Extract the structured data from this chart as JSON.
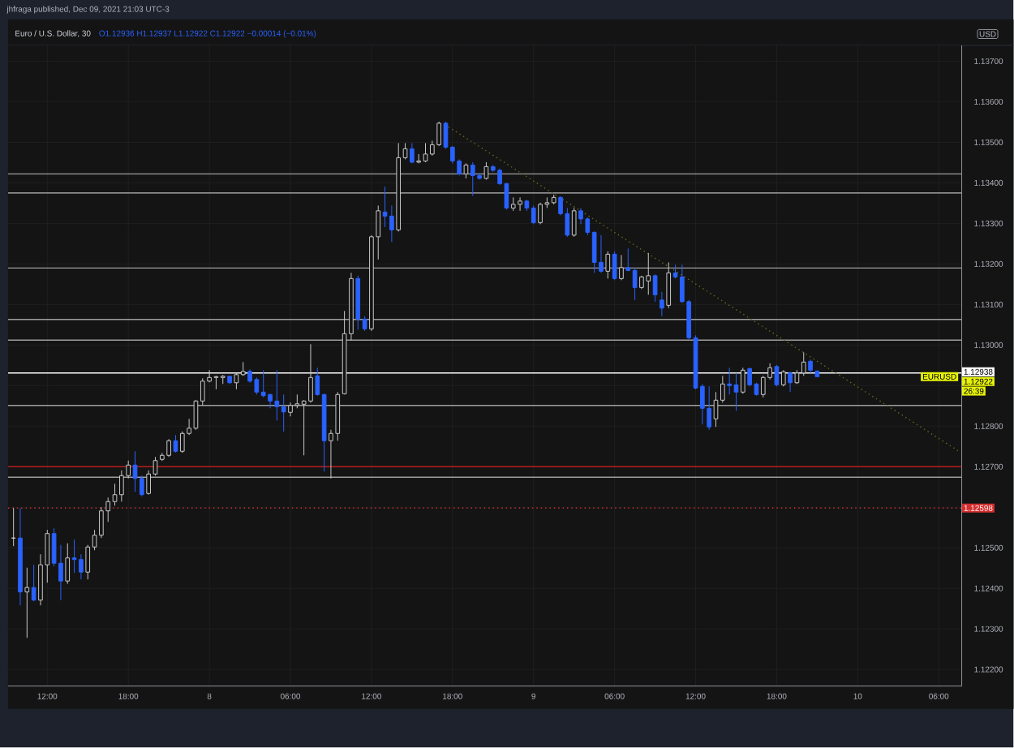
{
  "chart_data": {
    "type": "candlestick",
    "title": "Euro / U.S. Dollar, 30",
    "subtitle": "O1.12936 H1.12937 L1.12922 C1.12922 −0.00014 (−0.01%)",
    "ylabel": "USD",
    "x": [
      "2021-12-07T09:30",
      "2021-12-07T10:00",
      "2021-12-07T10:30",
      "2021-12-07T11:00",
      "2021-12-07T11:30",
      "2021-12-07T12:00",
      "2021-12-07T12:30",
      "2021-12-07T13:00",
      "2021-12-07T13:30",
      "2021-12-07T14:00",
      "2021-12-07T14:30",
      "2021-12-07T15:00",
      "2021-12-07T15:30",
      "2021-12-07T16:00",
      "2021-12-07T16:30",
      "2021-12-07T17:00",
      "2021-12-07T17:30",
      "2021-12-07T18:00",
      "2021-12-07T18:30",
      "2021-12-07T19:00",
      "2021-12-07T19:30",
      "2021-12-07T20:00",
      "2021-12-07T20:30",
      "2021-12-07T21:00",
      "2021-12-07T21:30",
      "2021-12-07T22:00",
      "2021-12-07T22:30",
      "2021-12-07T23:00",
      "2021-12-07T23:30",
      "2021-12-08T00:00",
      "2021-12-08T00:30",
      "2021-12-08T01:00",
      "2021-12-08T01:30",
      "2021-12-08T02:00",
      "2021-12-08T02:30",
      "2021-12-08T03:00",
      "2021-12-08T03:30",
      "2021-12-08T04:00",
      "2021-12-08T04:30",
      "2021-12-08T05:00",
      "2021-12-08T05:30",
      "2021-12-08T06:00",
      "2021-12-08T06:30",
      "2021-12-08T07:00",
      "2021-12-08T07:30",
      "2021-12-08T08:00",
      "2021-12-08T08:30",
      "2021-12-08T09:00",
      "2021-12-08T09:30",
      "2021-12-08T10:00",
      "2021-12-08T10:30",
      "2021-12-08T11:00",
      "2021-12-08T11:30",
      "2021-12-08T12:00",
      "2021-12-08T12:30",
      "2021-12-08T13:00",
      "2021-12-08T13:30",
      "2021-12-08T14:00",
      "2021-12-08T14:30",
      "2021-12-08T15:00",
      "2021-12-08T15:30",
      "2021-12-08T16:00",
      "2021-12-08T16:30",
      "2021-12-08T17:00",
      "2021-12-08T17:30",
      "2021-12-08T18:00",
      "2021-12-08T18:30",
      "2021-12-08T19:00",
      "2021-12-08T19:30",
      "2021-12-08T20:00",
      "2021-12-08T20:30",
      "2021-12-08T21:00",
      "2021-12-08T21:30",
      "2021-12-08T22:00",
      "2021-12-08T22:30",
      "2021-12-08T23:00",
      "2021-12-08T23:30",
      "2021-12-09T00:00",
      "2021-12-09T00:30",
      "2021-12-09T01:00",
      "2021-12-09T01:30",
      "2021-12-09T02:00",
      "2021-12-09T02:30",
      "2021-12-09T03:00",
      "2021-12-09T03:30",
      "2021-12-09T04:00",
      "2021-12-09T04:30",
      "2021-12-09T05:00",
      "2021-12-09T05:30",
      "2021-12-09T06:00",
      "2021-12-09T06:30",
      "2021-12-09T07:00",
      "2021-12-09T07:30",
      "2021-12-09T08:00",
      "2021-12-09T08:30",
      "2021-12-09T09:00",
      "2021-12-09T09:30",
      "2021-12-09T10:00",
      "2021-12-09T10:30",
      "2021-12-09T11:00",
      "2021-12-09T11:30",
      "2021-12-09T12:00",
      "2021-12-09T12:30",
      "2021-12-09T13:00",
      "2021-12-09T13:30",
      "2021-12-09T14:00",
      "2021-12-09T14:30",
      "2021-12-09T15:00",
      "2021-12-09T15:30",
      "2021-12-09T16:00",
      "2021-12-09T16:30",
      "2021-12-09T17:00",
      "2021-12-09T17:30",
      "2021-12-09T18:00",
      "2021-12-09T18:30",
      "2021-12-09T19:00",
      "2021-12-09T19:30",
      "2021-12-09T20:00",
      "2021-12-09T20:30",
      "2021-12-09T21:00"
    ],
    "ohlc": [
      [
        1.12524,
        1.12598,
        1.12504,
        1.12524
      ],
      [
        1.12524,
        1.12598,
        1.12358,
        1.12391
      ],
      [
        1.12391,
        1.12451,
        1.12278,
        1.12402
      ],
      [
        1.12402,
        1.12458,
        1.12368,
        1.12371
      ],
      [
        1.12371,
        1.12484,
        1.12358,
        1.12458
      ],
      [
        1.12458,
        1.12544,
        1.12414,
        1.12535
      ],
      [
        1.12535,
        1.12548,
        1.12454,
        1.12462
      ],
      [
        1.12462,
        1.12507,
        1.12371,
        1.12418
      ],
      [
        1.12418,
        1.12511,
        1.12411,
        1.12475
      ],
      [
        1.12475,
        1.1252,
        1.12438,
        1.12471
      ],
      [
        1.12471,
        1.12484,
        1.12422,
        1.1244
      ],
      [
        1.1244,
        1.12507,
        1.12422,
        1.12502
      ],
      [
        1.12502,
        1.12544,
        1.12494,
        1.12531
      ],
      [
        1.12531,
        1.126,
        1.12524,
        1.12591
      ],
      [
        1.12591,
        1.12624,
        1.12564,
        1.12614
      ],
      [
        1.12614,
        1.12658,
        1.12604,
        1.12631
      ],
      [
        1.12631,
        1.12691,
        1.12614,
        1.12678
      ],
      [
        1.12678,
        1.12715,
        1.12671,
        1.12704
      ],
      [
        1.12704,
        1.12738,
        1.12638,
        1.12671
      ],
      [
        1.12671,
        1.12678,
        1.12627,
        1.12631
      ],
      [
        1.12634,
        1.12691,
        1.12631,
        1.12682
      ],
      [
        1.12682,
        1.12724,
        1.12678,
        1.12715
      ],
      [
        1.12718,
        1.12734,
        1.12714,
        1.12728
      ],
      [
        1.12728,
        1.12768,
        1.12724,
        1.12764
      ],
      [
        1.12764,
        1.12778,
        1.12735,
        1.12738
      ],
      [
        1.12738,
        1.12787,
        1.12734,
        1.12782
      ],
      [
        1.12782,
        1.12818,
        1.12778,
        1.12795
      ],
      [
        1.12795,
        1.12864,
        1.12791,
        1.12862
      ],
      [
        1.12862,
        1.12918,
        1.12851,
        1.12911
      ],
      [
        1.12911,
        1.12938,
        1.12908,
        1.1292
      ],
      [
        1.1292,
        1.12924,
        1.12891,
        1.12922
      ],
      [
        1.1292,
        1.12926,
        1.12904,
        1.12923
      ],
      [
        1.12923,
        1.12924,
        1.12904,
        1.12907
      ],
      [
        1.12907,
        1.12931,
        1.12891,
        1.12927
      ],
      [
        1.12927,
        1.12958,
        1.12924,
        1.12935
      ],
      [
        1.12935,
        1.1294,
        1.12907,
        1.12911
      ],
      [
        1.12915,
        1.1292,
        1.12878,
        1.12884
      ],
      [
        1.12884,
        1.12938,
        1.12871,
        1.12875
      ],
      [
        1.12878,
        1.1288,
        1.12844,
        1.12862
      ],
      [
        1.12862,
        1.12938,
        1.12814,
        1.12848
      ],
      [
        1.12848,
        1.12878,
        1.12787,
        1.12835
      ],
      [
        1.12834,
        1.12858,
        1.12824,
        1.12851
      ],
      [
        1.12851,
        1.12878,
        1.12844,
        1.12855
      ],
      [
        1.12854,
        1.12864,
        1.12728,
        1.12862
      ],
      [
        1.12862,
        1.13002,
        1.12858,
        1.1292
      ],
      [
        1.12924,
        1.12944,
        1.12875,
        1.12878
      ],
      [
        1.12878,
        1.1288,
        1.12688,
        1.12764
      ],
      [
        1.12764,
        1.12791,
        1.12671,
        1.12782
      ],
      [
        1.12782,
        1.12884,
        1.12764,
        1.12878
      ],
      [
        1.1288,
        1.13084,
        1.12878,
        1.13028
      ],
      [
        1.13028,
        1.13178,
        1.13011,
        1.13164
      ],
      [
        1.13164,
        1.13171,
        1.13038,
        1.13064
      ],
      [
        1.13064,
        1.13071,
        1.13035,
        1.1304
      ],
      [
        1.1304,
        1.13271,
        1.13035,
        1.13267
      ],
      [
        1.13267,
        1.13344,
        1.13211,
        1.13331
      ],
      [
        1.13328,
        1.13391,
        1.13291,
        1.13318
      ],
      [
        1.13318,
        1.13344,
        1.13254,
        1.13284
      ],
      [
        1.13284,
        1.13498,
        1.1328,
        1.13462
      ],
      [
        1.13462,
        1.13498,
        1.13458,
        1.13484
      ],
      [
        1.13484,
        1.13498,
        1.13448,
        1.13451
      ],
      [
        1.13451,
        1.13471,
        1.13448,
        1.13454
      ],
      [
        1.13454,
        1.13498,
        1.13451,
        1.13471
      ],
      [
        1.13471,
        1.13504,
        1.13467,
        1.13494
      ],
      [
        1.13494,
        1.13551,
        1.13491,
        1.13547
      ],
      [
        1.13547,
        1.13551,
        1.13484,
        1.13488
      ],
      [
        1.13488,
        1.13491,
        1.13448,
        1.13454
      ],
      [
        1.13454,
        1.13458,
        1.13418,
        1.13422
      ],
      [
        1.13422,
        1.13448,
        1.13411,
        1.13444
      ],
      [
        1.13444,
        1.13451,
        1.13368,
        1.13418
      ],
      [
        1.13418,
        1.13424,
        1.13408,
        1.13411
      ],
      [
        1.13411,
        1.13451,
        1.13408,
        1.1344
      ],
      [
        1.1344,
        1.13444,
        1.13427,
        1.13431
      ],
      [
        1.13431,
        1.13435,
        1.13395,
        1.13398
      ],
      [
        1.13398,
        1.134,
        1.13334,
        1.13338
      ],
      [
        1.13338,
        1.13364,
        1.13331,
        1.13347
      ],
      [
        1.13347,
        1.13364,
        1.13331,
        1.13355
      ],
      [
        1.13355,
        1.13358,
        1.13331,
        1.13338
      ],
      [
        1.13338,
        1.13344,
        1.13298,
        1.13302
      ],
      [
        1.13302,
        1.13351,
        1.13298,
        1.13347
      ],
      [
        1.13347,
        1.13364,
        1.13338,
        1.13351
      ],
      [
        1.13351,
        1.13371,
        1.13347,
        1.13364
      ],
      [
        1.13364,
        1.13367,
        1.1332,
        1.13324
      ],
      [
        1.13324,
        1.13338,
        1.13267,
        1.13271
      ],
      [
        1.13271,
        1.13338,
        1.13267,
        1.13331
      ],
      [
        1.13331,
        1.13338,
        1.13298,
        1.13311
      ],
      [
        1.13311,
        1.13315,
        1.13271,
        1.13278
      ],
      [
        1.13278,
        1.1328,
        1.13178,
        1.13204
      ],
      [
        1.13204,
        1.13271,
        1.13178,
        1.13182
      ],
      [
        1.13182,
        1.13231,
        1.13164,
        1.13224
      ],
      [
        1.13224,
        1.13231,
        1.1316,
        1.13164
      ],
      [
        1.13164,
        1.13222,
        1.1316,
        1.13191
      ],
      [
        1.13191,
        1.13238,
        1.13182,
        1.13184
      ],
      [
        1.13184,
        1.13191,
        1.13111,
        1.13142
      ],
      [
        1.13142,
        1.13171,
        1.13138,
        1.13168
      ],
      [
        1.13158,
        1.13227,
        1.13124,
        1.13171
      ],
      [
        1.13171,
        1.13174,
        1.13107,
        1.13124
      ],
      [
        1.13111,
        1.13131,
        1.13071,
        1.13091
      ],
      [
        1.13098,
        1.13204,
        1.13091,
        1.13178
      ],
      [
        1.13178,
        1.13198,
        1.13164,
        1.13168
      ],
      [
        1.13168,
        1.13198,
        1.13104,
        1.13107
      ],
      [
        1.13107,
        1.13111,
        1.13014,
        1.13018
      ],
      [
        1.13018,
        1.13024,
        1.12891,
        1.12894
      ],
      [
        1.12898,
        1.12904,
        1.12804,
        1.12844
      ],
      [
        1.12844,
        1.12898,
        1.12791,
        1.12798
      ],
      [
        1.12818,
        1.12884,
        1.12798,
        1.12864
      ],
      [
        1.12864,
        1.12924,
        1.12858,
        1.12904
      ],
      [
        1.12904,
        1.12944,
        1.12878,
        1.129
      ],
      [
        1.12902,
        1.12931,
        1.12838,
        1.12884
      ],
      [
        1.12884,
        1.12944,
        1.1288,
        1.12938
      ],
      [
        1.12942,
        1.12944,
        1.12898,
        1.12902
      ],
      [
        1.12904,
        1.12907,
        1.12875,
        1.12878
      ],
      [
        1.12878,
        1.12924,
        1.12871,
        1.1292
      ],
      [
        1.1292,
        1.12955,
        1.12915,
        1.12944
      ],
      [
        1.12947,
        1.12951,
        1.12898,
        1.12902
      ],
      [
        1.12902,
        1.12938,
        1.12898,
        1.12934
      ],
      [
        1.12931,
        1.12934,
        1.12884,
        1.12907
      ],
      [
        1.12907,
        1.12938,
        1.12904,
        1.12931
      ],
      [
        1.12931,
        1.12982,
        1.12924,
        1.12958
      ],
      [
        1.1296,
        1.12964,
        1.12931,
        1.12938
      ],
      [
        1.12936,
        1.12937,
        1.12922,
        1.12922
      ]
    ],
    "series": [
      {
        "type": "line",
        "x": [
          "2021-12-08T17:42",
          "2021-12-10T07:30"
        ],
        "values": [
          1.13538,
          1.12738
        ],
        "color": "#6b6b1f",
        "line_style": "dotted"
      }
    ],
    "ref_lines": [
      {
        "axis": "y",
        "value": 1.13422,
        "color": "#9e9e9e",
        "line_style": "solid"
      },
      {
        "axis": "y",
        "value": 1.13375,
        "color": "#bdbdbd",
        "line_style": "solid"
      },
      {
        "axis": "y",
        "value": 1.1319,
        "color": "#9e9e9e",
        "line_style": "solid"
      },
      {
        "axis": "y",
        "value": 1.13063,
        "color": "#9e9e9e",
        "line_style": "solid"
      },
      {
        "axis": "y",
        "value": 1.13012,
        "color": "#9e9e9e",
        "line_style": "solid"
      },
      {
        "axis": "y",
        "value": 1.12931,
        "color": "#ffffff",
        "line_style": "solid"
      },
      {
        "axis": "y",
        "value": 1.12851,
        "color": "#9e9e9e",
        "line_style": "solid"
      },
      {
        "axis": "y",
        "value": 1.127,
        "color": "#b71c1c",
        "line_style": "solid"
      },
      {
        "axis": "y",
        "value": 1.12674,
        "color": "#9e9e9e",
        "line_style": "solid"
      },
      {
        "axis": "y",
        "value": 1.12598,
        "color": "#d32f2f",
        "line_style": "dotted",
        "label": "1.12598"
      }
    ],
    "annotations": [
      "jhfraga published, Dec 09, 2021 21:03 UTC-3",
      "1.12938",
      {
        "text": "EURUSD",
        "y": 1.12922
      },
      "1.12922",
      "26:39"
    ],
    "xlim": [
      "2021-12-07T09:06",
      "2021-12-10T07:42"
    ],
    "ylim": [
      1.12159,
      1.13739
    ],
    "xticks": [
      {
        "value": "2021-12-07T12:00",
        "label": "12:00"
      },
      {
        "value": "2021-12-07T18:00",
        "label": "18:00"
      },
      {
        "value": "2021-12-08T00:00",
        "label": "8"
      },
      {
        "value": "2021-12-08T06:00",
        "label": "06:00"
      },
      {
        "value": "2021-12-08T12:00",
        "label": "12:00"
      },
      {
        "value": "2021-12-08T18:00",
        "label": "18:00"
      },
      {
        "value": "2021-12-09T00:00",
        "label": "9"
      },
      {
        "value": "2021-12-09T06:00",
        "label": "06:00"
      },
      {
        "value": "2021-12-09T12:00",
        "label": "12:00"
      },
      {
        "value": "2021-12-09T18:00",
        "label": "18:00"
      },
      {
        "value": "2021-12-10T00:00",
        "label": "10"
      },
      {
        "value": "2021-12-10T06:00",
        "label": "06:00"
      }
    ],
    "yticks": [
      {
        "value": 1.122,
        "label": "1.12200"
      },
      {
        "value": 1.123,
        "label": "1.12300"
      },
      {
        "value": 1.124,
        "label": "1.12400"
      },
      {
        "value": 1.125,
        "label": "1.12500"
      },
      {
        "value": 1.126,
        "label": null
      },
      {
        "value": 1.127,
        "label": "1.12700"
      },
      {
        "value": 1.128,
        "label": "1.12800"
      },
      {
        "value": 1.129,
        "label": null
      },
      {
        "value": 1.13,
        "label": "1.13000"
      },
      {
        "value": 1.131,
        "label": "1.13100"
      },
      {
        "value": 1.132,
        "label": "1.13200"
      },
      {
        "value": 1.133,
        "label": "1.13300"
      },
      {
        "value": 1.134,
        "label": "1.13400"
      },
      {
        "value": 1.135,
        "label": "1.13500"
      },
      {
        "value": 1.136,
        "label": "1.13600"
      },
      {
        "value": 1.137,
        "label": "1.13700"
      }
    ],
    "grid": true
  }
}
